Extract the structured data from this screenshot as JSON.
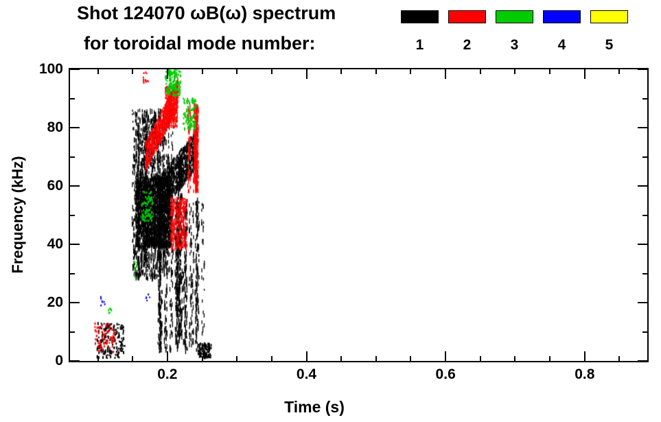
{
  "chart_data": {
    "type": "scatter",
    "title": "Shot 124070 ωB(ω) spectrum",
    "subtitle": "for toroidal mode number:",
    "xlabel": "Time (s)",
    "ylabel": "Frequency (kHz)",
    "xlim": [
      0.06,
      0.89
    ],
    "ylim": [
      0,
      100
    ],
    "xticks": [
      0.2,
      0.4,
      0.6,
      0.8
    ],
    "xtick_labels": [
      "0.2",
      "0.4",
      "0.6",
      "0.8"
    ],
    "x_minor_step": 0.05,
    "yticks": [
      0,
      20,
      40,
      60,
      80,
      100
    ],
    "ytick_labels": [
      "0",
      "20",
      "40",
      "60",
      "80",
      "100"
    ],
    "y_minor_step": 10,
    "grid": false,
    "legend_position": "top-right",
    "legend": [
      {
        "label": "1",
        "color": "#000000"
      },
      {
        "label": "2",
        "color": "#ff0000"
      },
      {
        "label": "3",
        "color": "#00cc00"
      },
      {
        "label": "4",
        "color": "#0000ff"
      },
      {
        "label": "5",
        "color": "#ffff00"
      }
    ],
    "seed": 124070,
    "clusters": [
      {
        "mode": 1,
        "type": "specks",
        "t": [
          0.098,
          0.138
        ],
        "f": [
          1,
          13
        ],
        "n": 160,
        "seg": [
          2,
          5
        ]
      },
      {
        "mode": 1,
        "type": "streaks",
        "t": [
          0.15,
          0.21
        ],
        "f": [
          28,
          86
        ],
        "cols": 28,
        "n": 1500,
        "seg": [
          3,
          9
        ]
      },
      {
        "mode": 1,
        "type": "blob",
        "t": [
          0.154,
          0.205
        ],
        "f": [
          39,
          63
        ],
        "n": 2200,
        "seg": [
          2,
          6
        ]
      },
      {
        "mode": 1,
        "type": "band",
        "t": [
          0.188,
          0.24
        ],
        "f0": 57,
        "f1": 72,
        "thick": 13,
        "n": 1000,
        "seg": [
          2,
          6
        ]
      },
      {
        "mode": 1,
        "type": "streaks",
        "t": [
          0.185,
          0.252
        ],
        "f": [
          3,
          55
        ],
        "cols": 20,
        "n": 750,
        "seg": [
          3,
          10
        ]
      },
      {
        "mode": 1,
        "type": "streaks",
        "t": [
          0.214,
          0.224
        ],
        "f": [
          8,
          70
        ],
        "cols": 3,
        "n": 260,
        "seg": [
          4,
          10
        ]
      },
      {
        "mode": 1,
        "type": "specks",
        "t": [
          0.244,
          0.262
        ],
        "f": [
          1,
          6
        ],
        "n": 110,
        "seg": [
          2,
          4
        ]
      },
      {
        "mode": 2,
        "type": "specks",
        "t": [
          0.094,
          0.124
        ],
        "f": [
          3,
          13
        ],
        "n": 70,
        "seg": [
          2,
          4
        ]
      },
      {
        "mode": 2,
        "type": "band",
        "t": [
          0.168,
          0.215
        ],
        "f0": 70,
        "f1": 92,
        "thick": 10,
        "n": 850,
        "seg": [
          2,
          6
        ]
      },
      {
        "mode": 2,
        "type": "blob",
        "t": [
          0.196,
          0.214
        ],
        "f": [
          80,
          94
        ],
        "n": 350,
        "seg": [
          2,
          5
        ]
      },
      {
        "mode": 2,
        "type": "streaks",
        "t": [
          0.228,
          0.248
        ],
        "f": [
          58,
          88
        ],
        "cols": 6,
        "n": 380,
        "seg": [
          3,
          8
        ]
      },
      {
        "mode": 2,
        "type": "blob",
        "t": [
          0.204,
          0.228
        ],
        "f": [
          38,
          56
        ],
        "n": 420,
        "seg": [
          2,
          5
        ]
      },
      {
        "mode": 2,
        "type": "specks",
        "t": [
          0.164,
          0.172
        ],
        "f": [
          95,
          99
        ],
        "n": 12,
        "seg": [
          2,
          3
        ]
      },
      {
        "mode": 3,
        "type": "specks",
        "t": [
          0.196,
          0.218
        ],
        "f": [
          91,
          100
        ],
        "n": 130,
        "seg": [
          2,
          5
        ]
      },
      {
        "mode": 3,
        "type": "specks",
        "t": [
          0.222,
          0.24
        ],
        "f": [
          79,
          90
        ],
        "n": 90,
        "seg": [
          2,
          5
        ]
      },
      {
        "mode": 3,
        "type": "specks",
        "t": [
          0.162,
          0.178
        ],
        "f": [
          48,
          58
        ],
        "n": 70,
        "seg": [
          2,
          4
        ]
      },
      {
        "mode": 3,
        "type": "specks",
        "t": [
          0.112,
          0.119
        ],
        "f": [
          15,
          18
        ],
        "n": 8,
        "seg": [
          2,
          3
        ]
      },
      {
        "mode": 3,
        "type": "specks",
        "t": [
          0.15,
          0.158
        ],
        "f": [
          28,
          34
        ],
        "n": 10,
        "seg": [
          2,
          3
        ]
      },
      {
        "mode": 4,
        "type": "specks",
        "t": [
          0.103,
          0.11
        ],
        "f": [
          19,
          22
        ],
        "n": 7,
        "seg": [
          2,
          3
        ]
      },
      {
        "mode": 4,
        "type": "specks",
        "t": [
          0.168,
          0.174
        ],
        "f": [
          20,
          23
        ],
        "n": 5,
        "seg": [
          2,
          3
        ]
      }
    ]
  }
}
